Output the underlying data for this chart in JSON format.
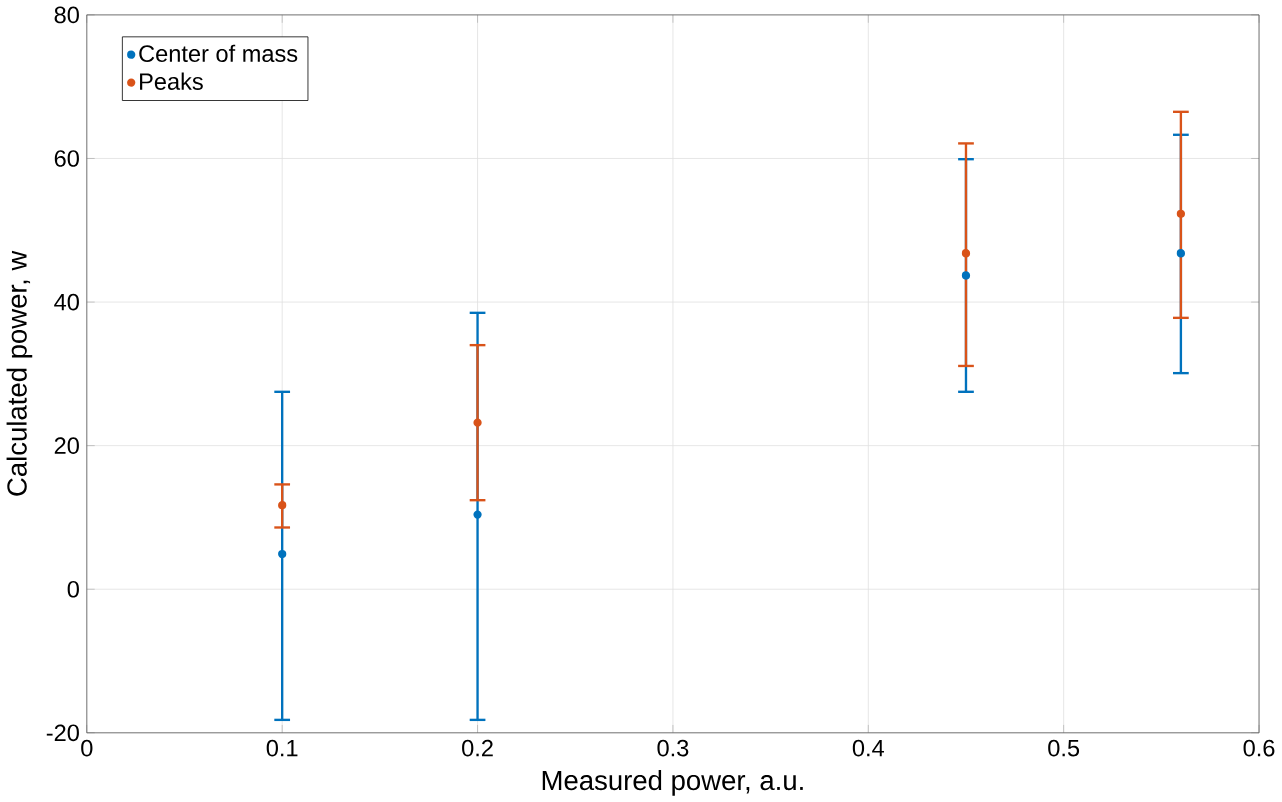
{
  "chart_data": {
    "type": "scatter",
    "xlabel": "Measured power, a.u.",
    "ylabel": "Calculated power, w",
    "x": [
      0.1,
      0.2,
      0.45,
      0.56
    ],
    "series": [
      {
        "name": "Center of mass",
        "color": "#0072bd",
        "values": [
          4.9,
          10.4,
          43.7,
          46.8
        ],
        "errors": [
          [
            -18.2,
            27.5
          ],
          [
            -18.2,
            38.5
          ],
          [
            27.5,
            59.9
          ],
          [
            30.1,
            63.3
          ]
        ]
      },
      {
        "name": "Peaks",
        "color": "#d95319",
        "values": [
          11.7,
          23.2,
          46.8,
          52.3
        ],
        "errors": [
          [
            8.6,
            14.6
          ],
          [
            12.4,
            34
          ],
          [
            31.1,
            62.1
          ],
          [
            37.8,
            66.5
          ]
        ]
      }
    ],
    "xlim": [
      0,
      0.6
    ],
    "ylim": [
      -20,
      80
    ],
    "xticks": [
      0,
      0.1,
      0.2,
      0.3,
      0.4,
      0.5,
      0.6
    ],
    "yticks": [
      -20,
      0,
      20,
      40,
      60,
      80
    ],
    "grid": true,
    "legend": "top left",
    "marker": "circle"
  }
}
